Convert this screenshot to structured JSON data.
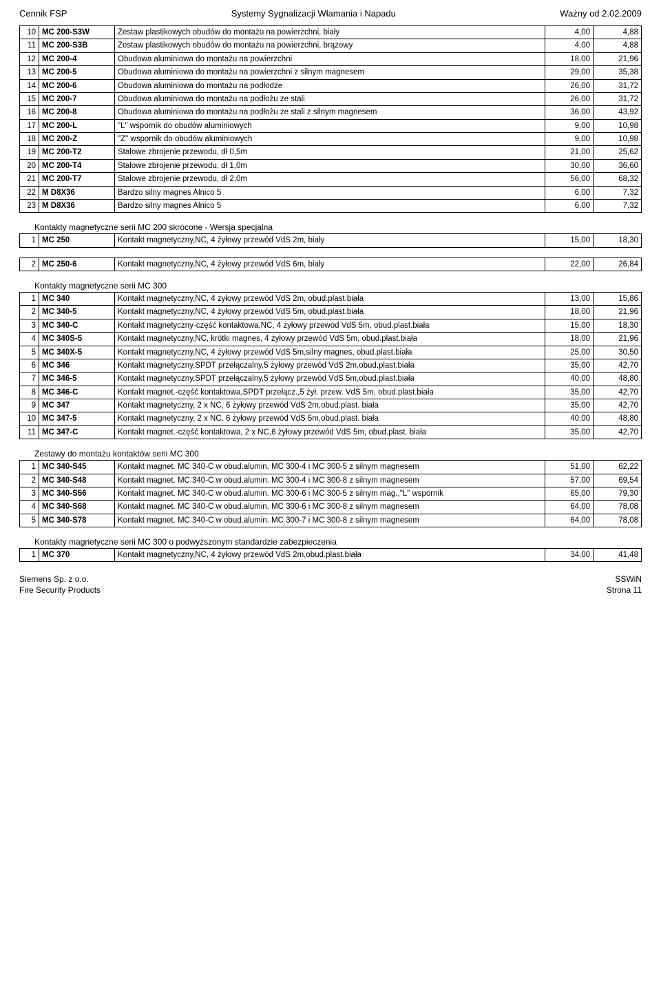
{
  "header": {
    "left": "Cennik FSP",
    "center": "Systemy Sygnalizacji Włamania i Napadu",
    "right": "Ważny od 2.02.2009"
  },
  "tables": [
    {
      "title": null,
      "rows": [
        {
          "idx": "10",
          "code": "MC 200-S3W",
          "desc": "Zestaw plastikowych obudów do montażu na powierzchni, biały",
          "v1": "4,00",
          "v2": "4,88"
        },
        {
          "idx": "11",
          "code": "MC 200-S3B",
          "desc": "Zestaw plastikowych obudów do montażu na powierzchni, brązowy",
          "v1": "4,00",
          "v2": "4,88"
        },
        {
          "idx": "12",
          "code": "MC 200-4",
          "desc": "Obudowa aluminiowa do montażu na powierzchni",
          "v1": "18,00",
          "v2": "21,96"
        },
        {
          "idx": "13",
          "code": "MC 200-5",
          "desc": "Obudowa aluminiowa do montażu na powierzchni z silnym magnesem",
          "v1": "29,00",
          "v2": "35,38"
        },
        {
          "idx": "14",
          "code": "MC 200-6",
          "desc": "Obudowa aluminiowa do montażu na podłodze",
          "v1": "26,00",
          "v2": "31,72"
        },
        {
          "idx": "15",
          "code": "MC 200-7",
          "desc": "Obudowa aluminiowa do montażu na podłożu ze stali",
          "v1": "26,00",
          "v2": "31,72"
        },
        {
          "idx": "16",
          "code": "MC 200-8",
          "desc": "Obudowa aluminiowa do montażu na podłożu ze stali z silnym magnesem",
          "v1": "36,00",
          "v2": "43,92"
        },
        {
          "idx": "17",
          "code": "MC 200-L",
          "desc": "\"L\" wspornik do obudów aluminiowych",
          "v1": "9,00",
          "v2": "10,98"
        },
        {
          "idx": "18",
          "code": "MC 200-Z",
          "desc": "\"Z\" wspornik do obudów aluminiowych",
          "v1": "9,00",
          "v2": "10,98"
        },
        {
          "idx": "19",
          "code": "MC 200-T2",
          "desc": "Stalowe zbrojenie przewodu, dł 0,5m",
          "v1": "21,00",
          "v2": "25,62"
        },
        {
          "idx": "20",
          "code": "MC 200-T4",
          "desc": "Stalowe zbrojenie przewodu, dł 1,0m",
          "v1": "30,00",
          "v2": "36,60"
        },
        {
          "idx": "21",
          "code": "MC 200-T7",
          "desc": "Stalowe zbrojenie przewodu, dł 2,0m",
          "v1": "56,00",
          "v2": "68,32"
        },
        {
          "idx": "22",
          "code": "M D8X36",
          "desc": "Bardzo silny magnes Alnico 5",
          "v1": "6,00",
          "v2": "7,32"
        },
        {
          "idx": "23",
          "code": "M D8X36",
          "desc": "Bardzo silny magnes Alnico 5",
          "v1": "6,00",
          "v2": "7,32"
        }
      ]
    },
    {
      "title": "Kontakty magnetyczne serii MC 200 skrócone - Wersja specjalna",
      "rows": [
        {
          "idx": "1",
          "code": "MC 250",
          "desc": "Kontakt magnetyczny,NC, 4 żyłowy przewód VdS 2m, biały",
          "v1": "15,00",
          "v2": "18,30"
        }
      ]
    },
    {
      "title": null,
      "rows": [
        {
          "idx": "2",
          "code": "MC 250-6",
          "desc": "Kontakt magnetyczny,NC, 4 żyłowy przewód VdS 6m, biały",
          "v1": "22,00",
          "v2": "26,84"
        }
      ]
    },
    {
      "title": "Kontakty magnetyczne serii MC 300",
      "rows": [
        {
          "idx": "1",
          "code": "MC 340",
          "desc": "Kontakt magnetyczny,NC, 4 żyłowy przewód VdS 2m, obud.plast.biała",
          "v1": "13,00",
          "v2": "15,86"
        },
        {
          "idx": "2",
          "code": "MC 340-5",
          "desc": "Kontakt magnetyczny,NC, 4 żyłowy przewód VdS 5m, obud.plast.biała",
          "v1": "18,00",
          "v2": "21,96"
        },
        {
          "idx": "3",
          "code": "MC 340-C",
          "desc": "Kontakt magnetyczny-część kontaktowa,NC, 4 żyłowy przewód VdS 5m, obud.plast.biała",
          "v1": "15,00",
          "v2": "18,30"
        },
        {
          "idx": "4",
          "code": "MC 340S-5",
          "desc": "Kontakt magnetyczny,NC, krótki magnes, 4 żyłowy przewód VdS 5m, obud.plast.biała",
          "v1": "18,00",
          "v2": "21,96"
        },
        {
          "idx": "5",
          "code": "MC 340X-5",
          "desc": "Kontakt magnetyczny,NC, 4 żyłowy przewód VdS 5m,silny magnes, obud.plast.biała",
          "v1": "25,00",
          "v2": "30,50"
        },
        {
          "idx": "6",
          "code": "MC 346",
          "desc": "Kontakt magnetyczny,SPDT przełączalny,5 żyłowy przewód VdS 2m,obud.plast.biała",
          "v1": "35,00",
          "v2": "42,70"
        },
        {
          "idx": "7",
          "code": "MC 346-5",
          "desc": "Kontakt magnetyczny,SPDT przełączalny,5 żyłowy przewód VdS 5m,obud.plast.biała",
          "v1": "40,00",
          "v2": "48,80"
        },
        {
          "idx": "8",
          "code": "MC 346-C",
          "desc": "Kontakt magnet.-część kontaktowa,SPDT przełącz.,5 żył. przew. VdS 5m, obud.plast.biała",
          "v1": "35,00",
          "v2": "42,70"
        },
        {
          "idx": "9",
          "code": "MC 347",
          "desc": "Kontakt magnetyczny, 2 x NC, 6 żyłowy przewód VdS 2m,obud.plast. biała",
          "v1": "35,00",
          "v2": "42,70"
        },
        {
          "idx": "10",
          "code": "MC 347-5",
          "desc": "Kontakt magnetyczny, 2 x NC, 6 żyłowy przewód VdS 5m,obud.plast. biała",
          "v1": "40,00",
          "v2": "48,80"
        },
        {
          "idx": "11",
          "code": "MC 347-C",
          "desc": "Kontakt magnet.-część kontaktowa, 2 x NC,6 żyłowy przewód VdS 5m, obud.plast. biała",
          "v1": "35,00",
          "v2": "42,70"
        }
      ]
    },
    {
      "title": "Zestawy do montażu kontaktów serii MC 300",
      "rows": [
        {
          "idx": "1",
          "code": "MC 340-S45",
          "desc": "Kontakt magnet. MC 340-C w obud.alumin. MC 300-4 i MC 300-5 z silnym magnesem",
          "v1": "51,00",
          "v2": "62,22"
        },
        {
          "idx": "2",
          "code": "MC 340-S48",
          "desc": "Kontakt magnet. MC 340-C w obud.alumin. MC 300-4 i MC 300-8 z silnym magnesem",
          "v1": "57,00",
          "v2": "69,54"
        },
        {
          "idx": "3",
          "code": "MC 340-S56",
          "desc": "Kontakt magnet. MC 340-C w obud.alumin. MC 300-6 i MC 300-5 z silnym mag.,\"L\" wspornik",
          "v1": "65,00",
          "v2": "79,30"
        },
        {
          "idx": "4",
          "code": "MC 340-S68",
          "desc": "Kontakt magnet. MC 340-C w obud.alumin. MC 300-6 i MC 300-8 z silnym magnesem",
          "v1": "64,00",
          "v2": "78,08"
        },
        {
          "idx": "5",
          "code": "MC 340-S78",
          "desc": "Kontakt magnet. MC 340-C w obud.alumin. MC 300-7 i MC 300-8 z silnym magnesem",
          "v1": "64,00",
          "v2": "78,08"
        }
      ]
    },
    {
      "title": "Kontakty magnetyczne serii MC 300 o podwyższonym standardzie zabezpieczenia",
      "rows": [
        {
          "idx": "1",
          "code": "MC 370",
          "desc": "Kontakt magnetyczny,NC, 4 żyłowy przewód VdS 2m,obud.plast.biała",
          "v1": "34,00",
          "v2": "41,48"
        }
      ]
    }
  ],
  "footer": {
    "left1": "Siemens Sp. z o.o.",
    "left2": "Fire Security Products",
    "right1": "SSWiN",
    "right2": "Strona 11"
  }
}
